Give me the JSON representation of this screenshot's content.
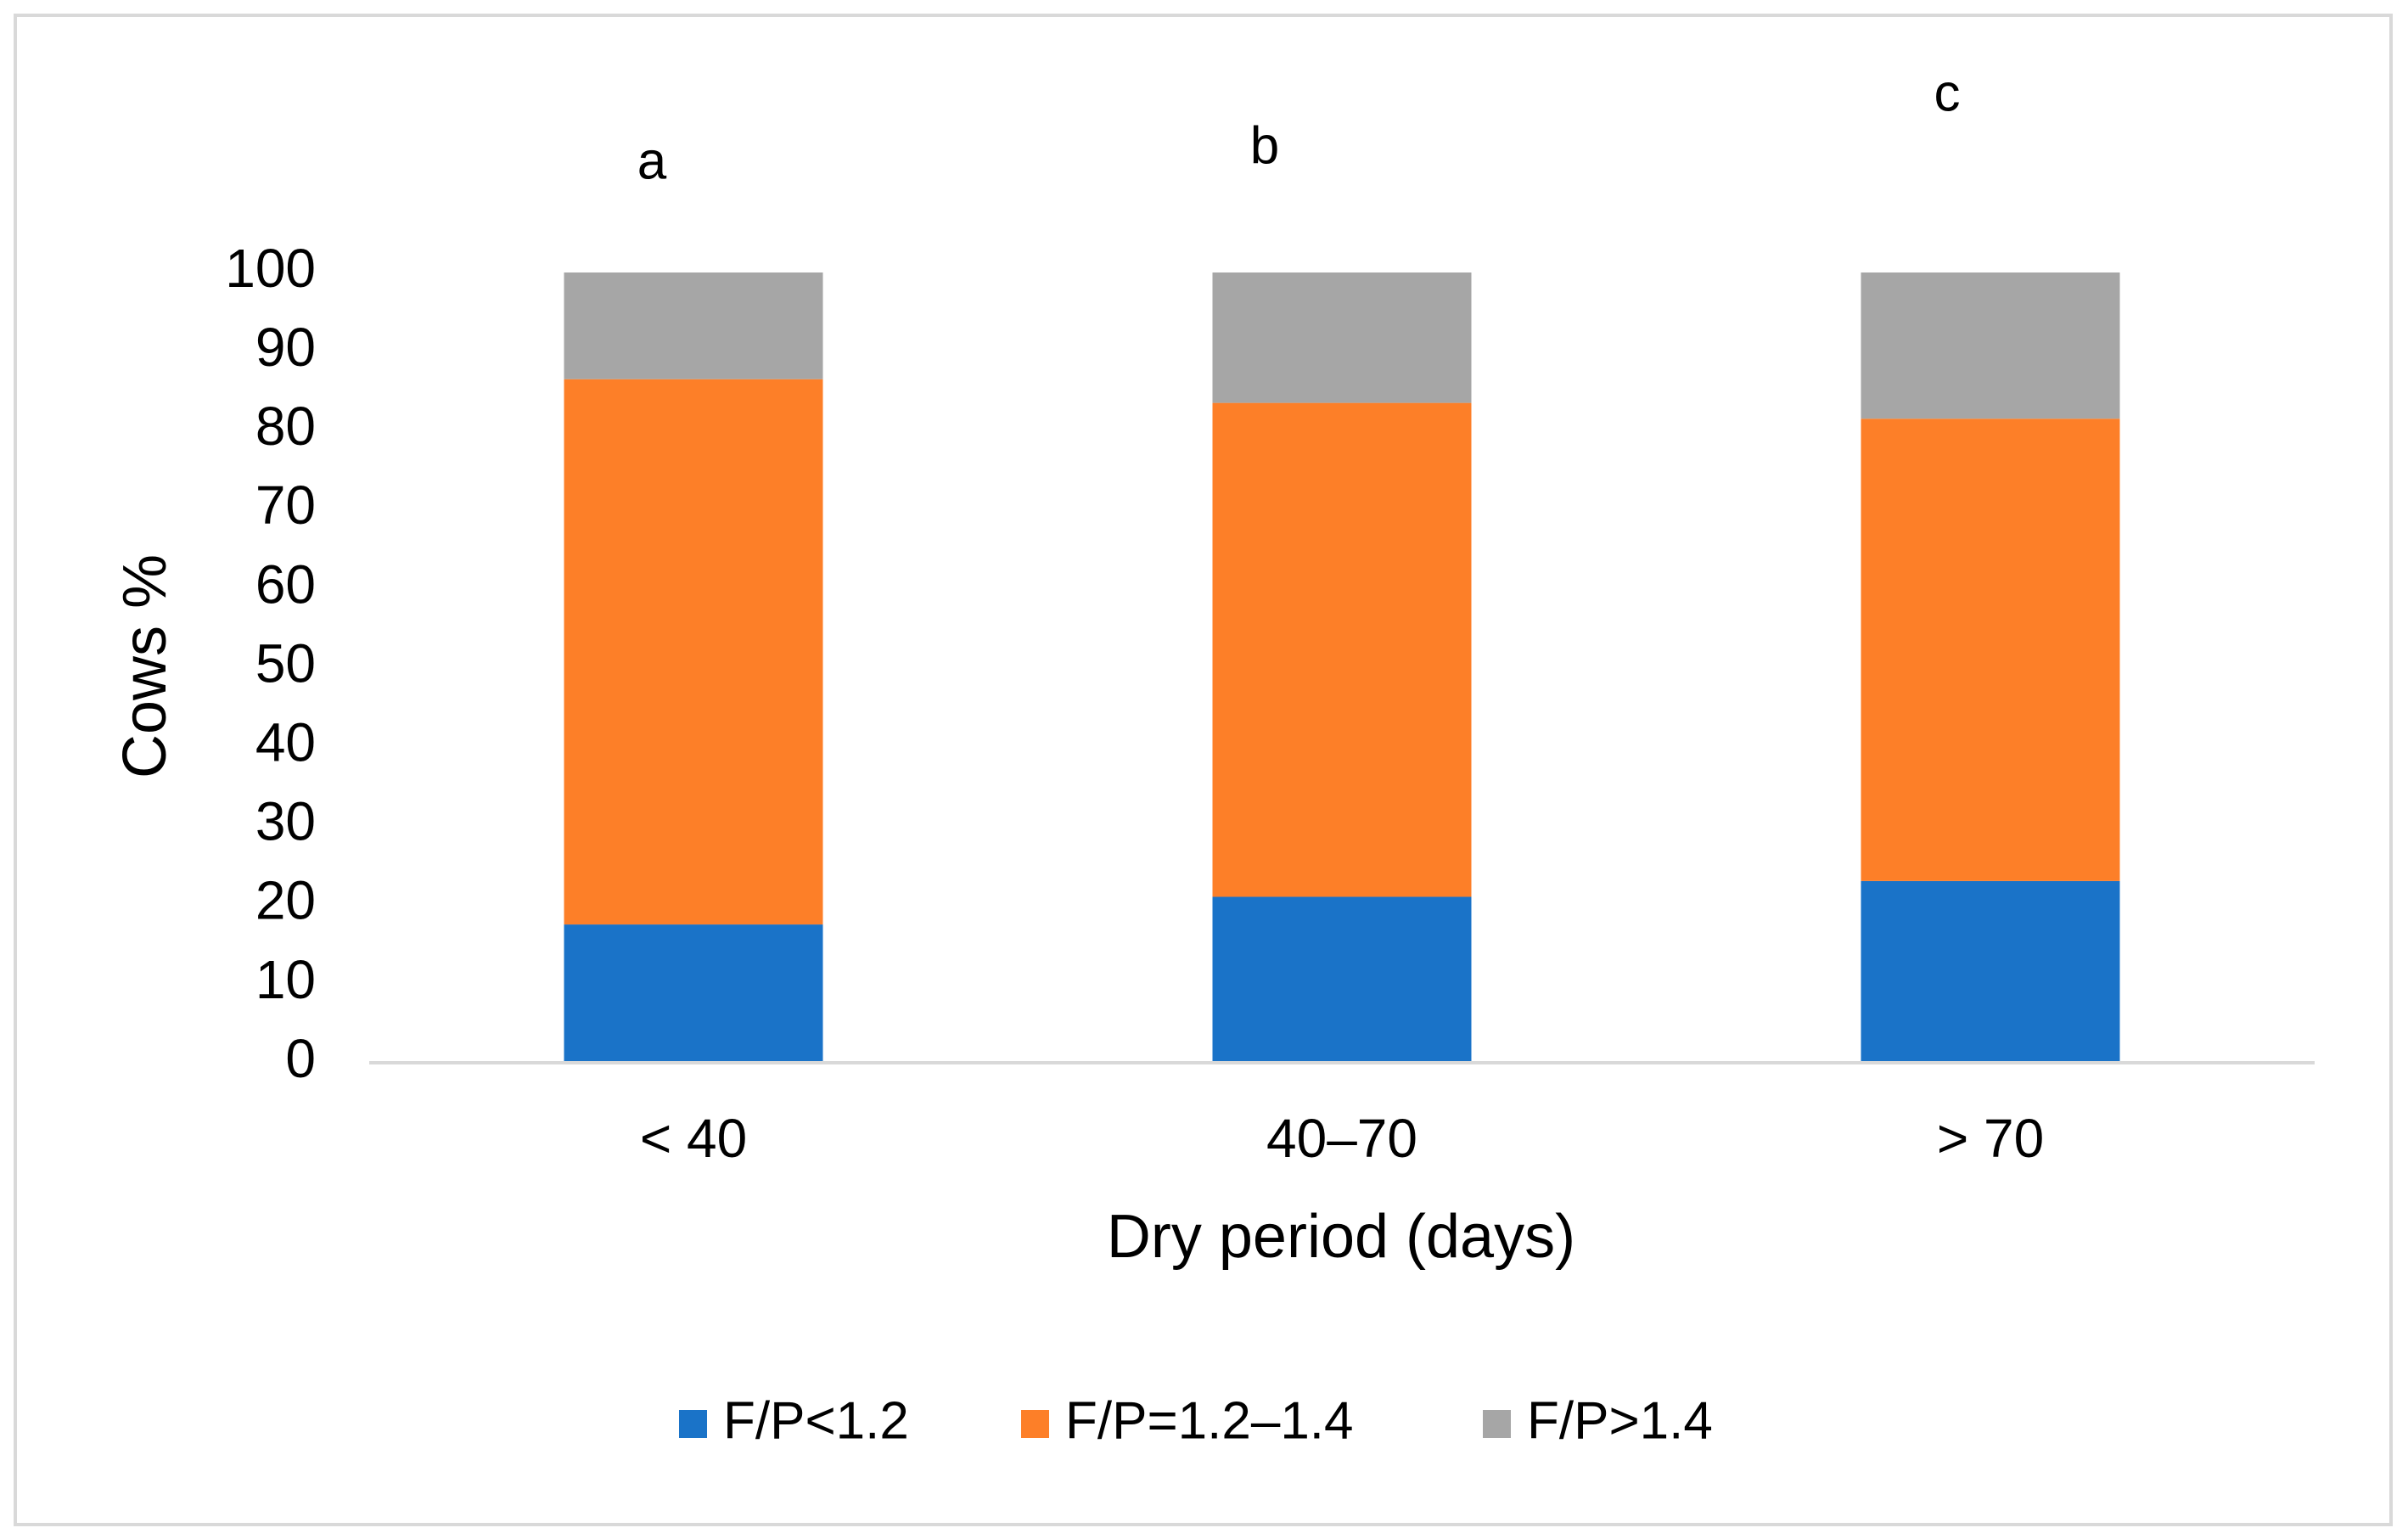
{
  "chart_data": {
    "type": "stacked_bar",
    "x_label": "Dry period (days)",
    "y_label": "Cows %",
    "categories": [
      "< 40",
      "40–70",
      "> 70"
    ],
    "series": [
      {
        "name": "F/P<1.2",
        "color": "#1a73c8",
        "values": [
          17.5,
          21,
          23
        ]
      },
      {
        "name": "F/P=1.2–1.4",
        "color": "#fd7f28",
        "values": [
          69,
          62.5,
          58.5
        ]
      },
      {
        "name": "F/P>1.4",
        "color": "#a6a6a6",
        "values": [
          13.5,
          16.5,
          18.5
        ]
      }
    ],
    "annotations": [
      "a",
      "b",
      "c"
    ],
    "ylim": [
      0,
      100
    ],
    "yticks": [
      0,
      10,
      20,
      30,
      40,
      50,
      60,
      70,
      80,
      90,
      100
    ],
    "grid": false,
    "legend": "bottom"
  }
}
